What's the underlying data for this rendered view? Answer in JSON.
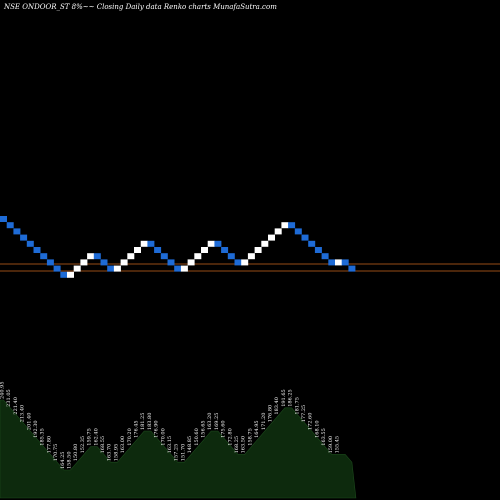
{
  "chart_data": {
    "type": "renko",
    "title": "NSE ONDOOR_ST 8%~~ Closing Daily data  Renko  charts MunafaSutra.com",
    "colors": {
      "background": "#000000",
      "up_brick": "#ffffff",
      "down_brick": "#1e6bd6",
      "level_line": "#c8641e",
      "volume_fill": "#0d2a0d"
    },
    "directions": [
      "down",
      "down",
      "down",
      "down",
      "down",
      "down",
      "down",
      "down",
      "down",
      "down",
      "up",
      "up",
      "up",
      "up",
      "down",
      "down",
      "down",
      "up",
      "up",
      "up",
      "up",
      "up",
      "down",
      "down",
      "down",
      "down",
      "down",
      "up",
      "up",
      "up",
      "up",
      "up",
      "down",
      "down",
      "down",
      "down",
      "up",
      "up",
      "up",
      "up",
      "up",
      "up",
      "up",
      "down",
      "down",
      "down",
      "down",
      "down",
      "down",
      "down",
      "up",
      "down",
      "down"
    ],
    "volume_labels": [
      "240.95",
      "231.05",
      "221.40",
      "213.40",
      "201.40",
      "192.30",
      "185.35",
      "177.80",
      "170.75",
      "164.25",
      "158.50",
      "150.80",
      "152.35",
      "159.75",
      "162.40",
      "168.55",
      "163.70",
      "158.95",
      "163.00",
      "170.20",
      "176.45",
      "181.25",
      "183.80",
      "176.90",
      "170.00",
      "163.15",
      "157.25",
      "151.70",
      "148.85",
      "150.60",
      "156.65",
      "163.20",
      "169.25",
      "175.60",
      "172.80",
      "168.25",
      "163.50",
      "158.75",
      "164.95",
      "171.20",
      "176.80",
      "183.40",
      "191.65",
      "186.25",
      "181.75",
      "177.25",
      "172.60",
      "168.10",
      "163.55",
      "159.00",
      "155.45"
    ]
  }
}
